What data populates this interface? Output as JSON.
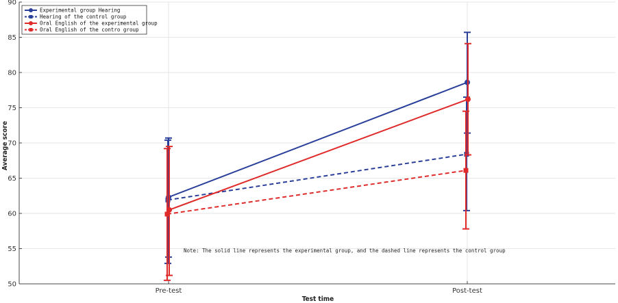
{
  "chart_data": {
    "type": "line",
    "title": "",
    "xlabel": "Test time",
    "ylabel": "Average score",
    "categories": [
      "Pre-test",
      "Post-test"
    ],
    "ylim": [
      50,
      90
    ],
    "yticks": [
      50,
      55,
      60,
      65,
      70,
      75,
      80,
      85,
      90
    ],
    "grid": true,
    "legend_position": "top-left",
    "note": "Note: The solid line represents the experimental group, and the dashed line represents the control group",
    "series": [
      {
        "name": "Experimental group Hearing",
        "values": [
          62.3,
          78.6
        ],
        "err_low": [
          53.8,
          71.4
        ],
        "err_high": [
          70.7,
          85.7
        ],
        "color": "#2a3f9a",
        "dash": false,
        "marker": "circle"
      },
      {
        "name": "Hearing of the control group",
        "values": [
          61.9,
          68.4
        ],
        "err_low": [
          52.9,
          60.4
        ],
        "err_high": [
          70.4,
          76.5
        ],
        "color": "#2a3f9a",
        "dash": true,
        "marker": "square"
      },
      {
        "name": "Oral English of the experimental group",
        "values": [
          60.5,
          76.2
        ],
        "err_low": [
          51.2,
          68.3
        ],
        "err_high": [
          69.5,
          84.1
        ],
        "color": "#e02a2a",
        "dash": false,
        "marker": "circle"
      },
      {
        "name": "Oral English of the contro  group",
        "values": [
          59.9,
          66.1
        ],
        "err_low": [
          50.5,
          57.8
        ],
        "err_high": [
          69.2,
          74.5
        ],
        "color": "#e02a2a",
        "dash": true,
        "marker": "square"
      }
    ]
  }
}
